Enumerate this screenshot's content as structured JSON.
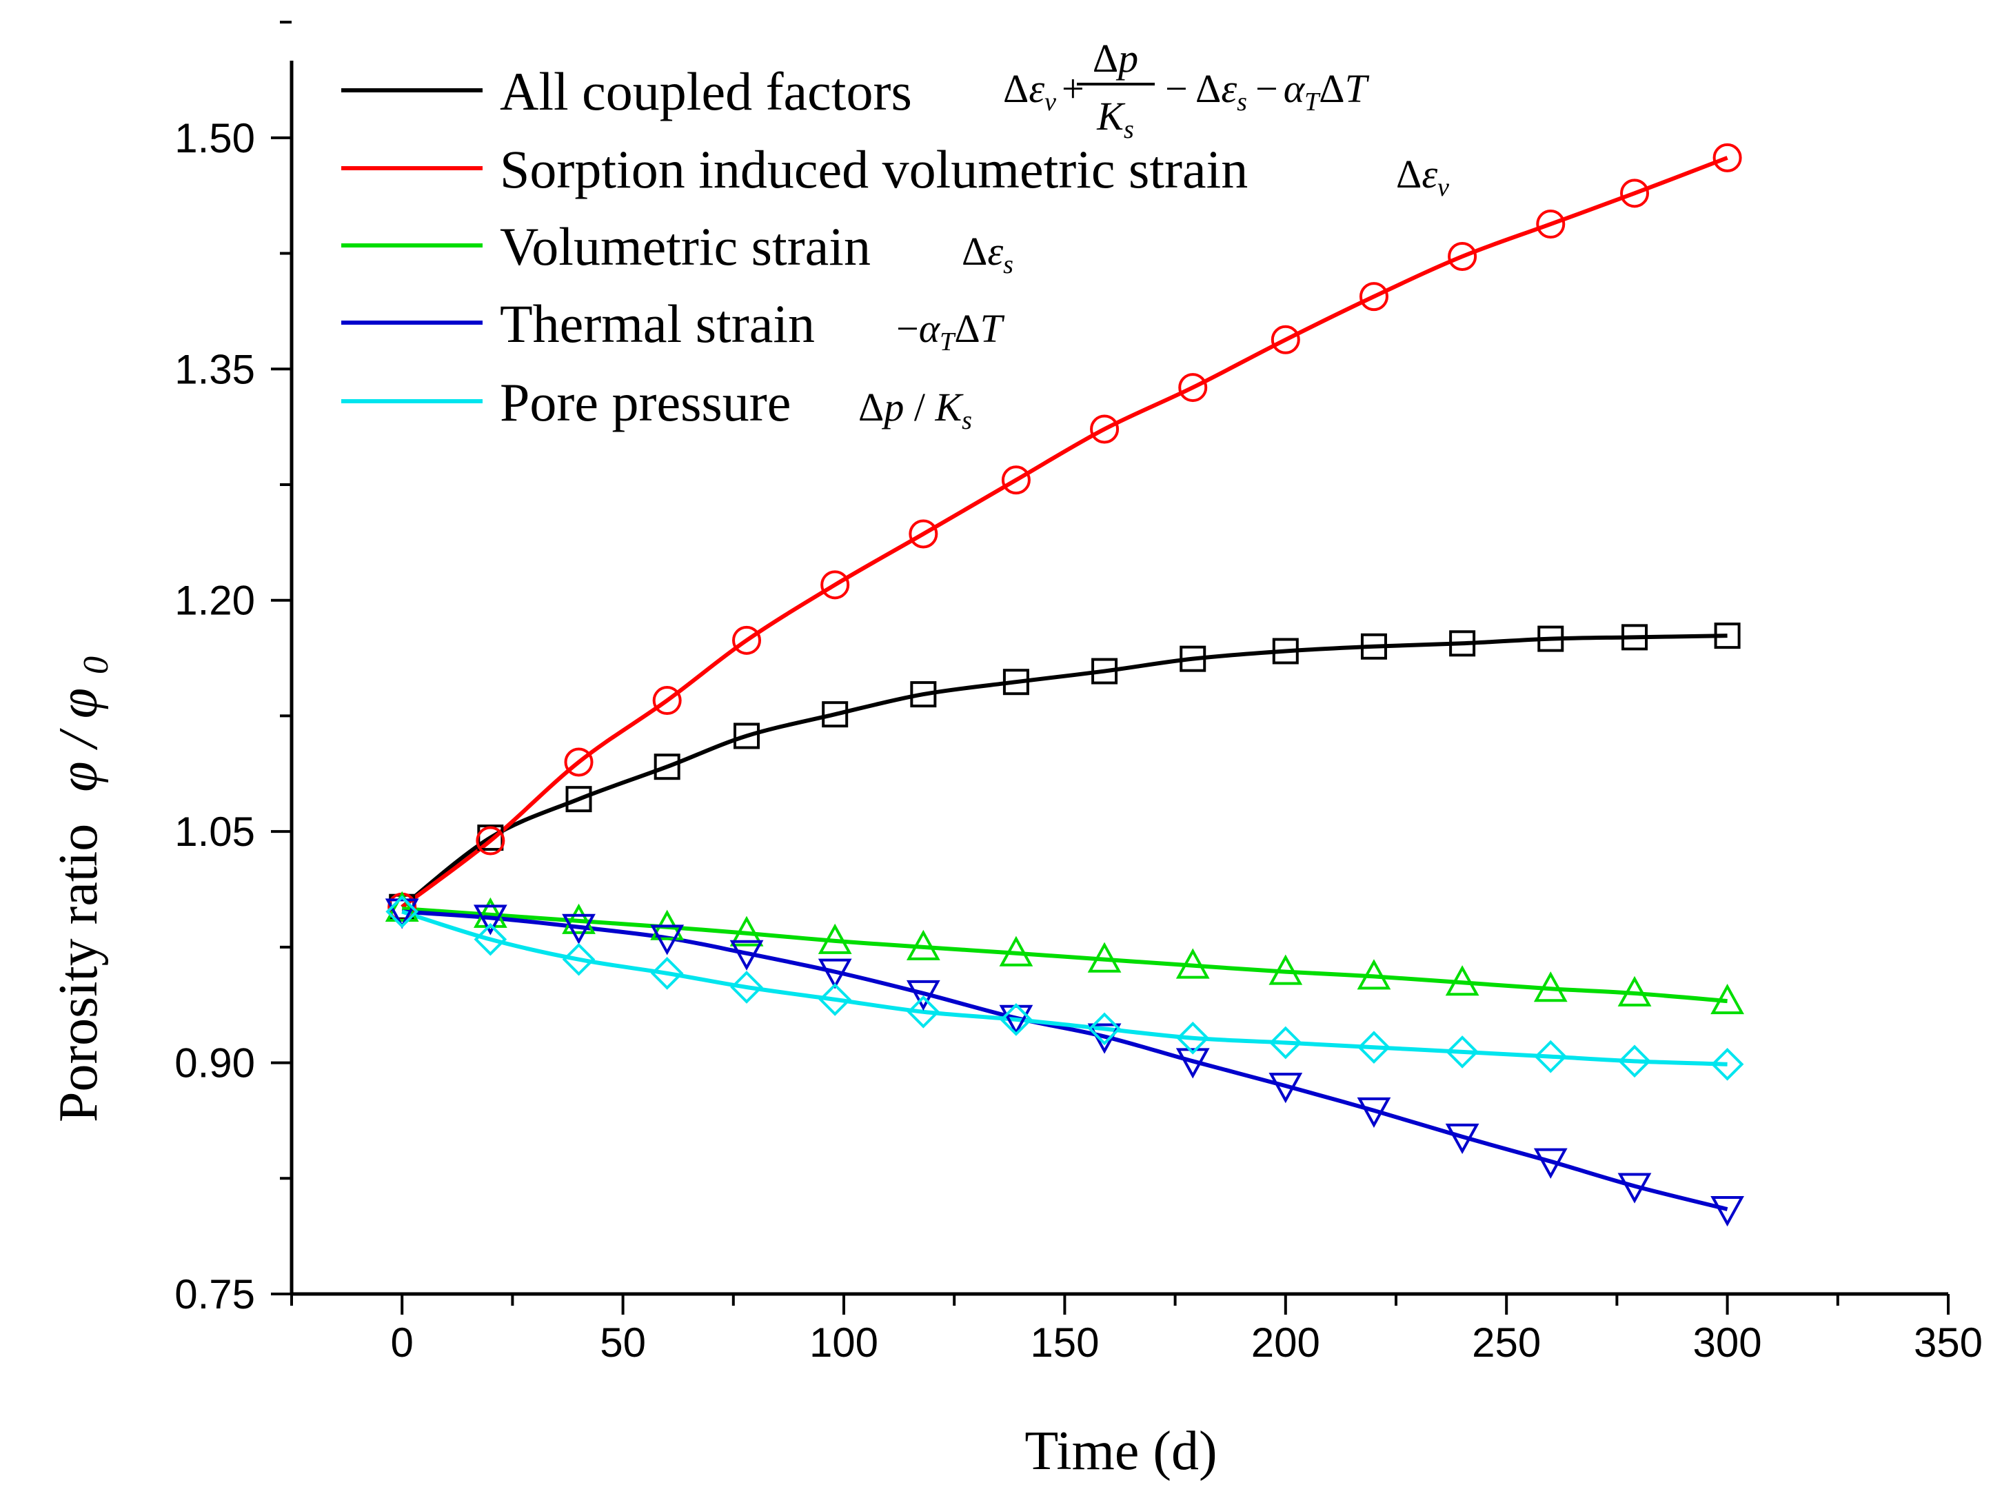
{
  "chart_data": {
    "type": "line",
    "title": "",
    "xlabel": "Time (d)",
    "ylabel": "Porosity ratio",
    "ylabel_symbol": "φ / φ",
    "ylabel_symbol_sub": "0",
    "xlim": [
      -25,
      350
    ],
    "ylim": [
      0.75,
      1.55
    ],
    "xticks": [
      0,
      50,
      100,
      150,
      200,
      250,
      300,
      350
    ],
    "xtick_labels": [
      "0",
      "50",
      "100",
      "150",
      "200",
      "250",
      "300",
      "350"
    ],
    "yticks": [
      0.75,
      0.9,
      1.05,
      1.2,
      1.35,
      1.5
    ],
    "ytick_labels": [
      "0.75",
      "0.90",
      "1.05",
      "1.20",
      "1.35",
      "1.50"
    ],
    "grid": false,
    "legend_position": "top-left",
    "series": [
      {
        "name": "All coupled factors",
        "color": "#000000",
        "marker": "square",
        "x": [
          0,
          20,
          40,
          60,
          78,
          98,
          118,
          139,
          159,
          179,
          200,
          220,
          240,
          260,
          279,
          300
        ],
        "y": [
          1.001,
          1.046,
          1.071,
          1.092,
          1.112,
          1.126,
          1.139,
          1.147,
          1.154,
          1.162,
          1.167,
          1.17,
          1.172,
          1.175,
          1.176,
          1.177
        ]
      },
      {
        "name": "Sorption induced volumetric strain",
        "color": "#ff0000",
        "marker": "circle",
        "x": [
          0,
          20,
          40,
          60,
          78,
          98,
          118,
          139,
          159,
          179,
          200,
          220,
          240,
          260,
          279,
          300
        ],
        "y": [
          1.001,
          1.044,
          1.095,
          1.135,
          1.174,
          1.21,
          1.243,
          1.278,
          1.311,
          1.338,
          1.369,
          1.397,
          1.423,
          1.444,
          1.464,
          1.487
        ]
      },
      {
        "name": "Volumetric strain",
        "color": "#00dd00",
        "marker": "triangle-up",
        "x": [
          0,
          20,
          40,
          60,
          78,
          98,
          118,
          139,
          159,
          179,
          200,
          220,
          240,
          260,
          279,
          300
        ],
        "y": [
          1.0,
          0.996,
          0.992,
          0.988,
          0.984,
          0.979,
          0.975,
          0.971,
          0.967,
          0.963,
          0.959,
          0.956,
          0.952,
          0.948,
          0.945,
          0.94
        ]
      },
      {
        "name": "Thermal strain",
        "color": "#0000cc",
        "marker": "triangle-down",
        "x": [
          0,
          20,
          40,
          60,
          78,
          98,
          118,
          139,
          159,
          179,
          200,
          220,
          240,
          260,
          279,
          300
        ],
        "y": [
          0.998,
          0.994,
          0.988,
          0.981,
          0.971,
          0.959,
          0.945,
          0.929,
          0.917,
          0.901,
          0.885,
          0.869,
          0.852,
          0.836,
          0.82,
          0.805
        ]
      },
      {
        "name": "Pore pressure",
        "color": "#00e5ee",
        "marker": "diamond",
        "x": [
          0,
          20,
          40,
          60,
          78,
          98,
          118,
          139,
          159,
          179,
          200,
          220,
          240,
          260,
          279,
          300
        ],
        "y": [
          0.998,
          0.98,
          0.967,
          0.958,
          0.949,
          0.941,
          0.933,
          0.928,
          0.922,
          0.916,
          0.913,
          0.91,
          0.907,
          0.904,
          0.901,
          0.899
        ]
      }
    ],
    "legend": [
      {
        "label": "All coupled factors",
        "formula": "Δε_v + Δp/K_s − Δε_s − α_T ΔT"
      },
      {
        "label": "Sorption induced volumetric strain",
        "formula": "Δε_v"
      },
      {
        "label": "Volumetric strain",
        "formula": "Δε_s"
      },
      {
        "label": "Thermal strain",
        "formula": "−α_T ΔT"
      },
      {
        "label": "Pore pressure",
        "formula": "Δp / K_s"
      }
    ]
  }
}
